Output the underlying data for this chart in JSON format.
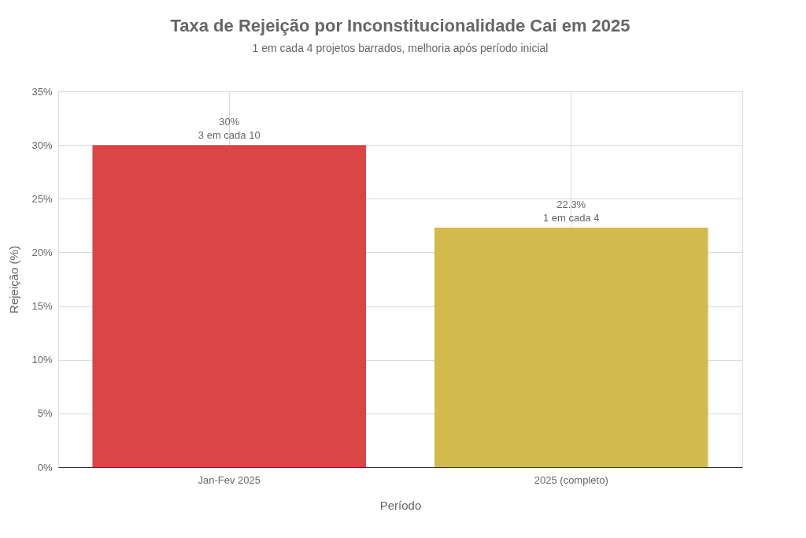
{
  "chart_data": {
    "type": "bar",
    "title": "Taxa de Rejeição por Inconstitucionalidade Cai em 2025",
    "subtitle": "1 em cada 4 projetos barrados, melhoria após período inicial",
    "xlabel": "Período",
    "ylabel": "Rejeição (%)",
    "categories": [
      "Jan-Fev 2025",
      "2025 (completo)"
    ],
    "values": [
      30,
      22.3
    ],
    "colors": [
      "#db4545",
      "#d2ba4c"
    ],
    "value_labels": [
      "30%\n3 em cada 10",
      "22.3%\n1 em cada 4"
    ],
    "ylim": [
      0,
      35
    ],
    "yticks": [
      {
        "value": 0,
        "label": "0%"
      },
      {
        "value": 5,
        "label": "5%"
      },
      {
        "value": 10,
        "label": "10%"
      },
      {
        "value": 15,
        "label": "15%"
      },
      {
        "value": 20,
        "label": "20%"
      },
      {
        "value": 25,
        "label": "25%"
      },
      {
        "value": 30,
        "label": "30%"
      },
      {
        "value": 35,
        "label": "35%"
      }
    ],
    "grid": true
  }
}
